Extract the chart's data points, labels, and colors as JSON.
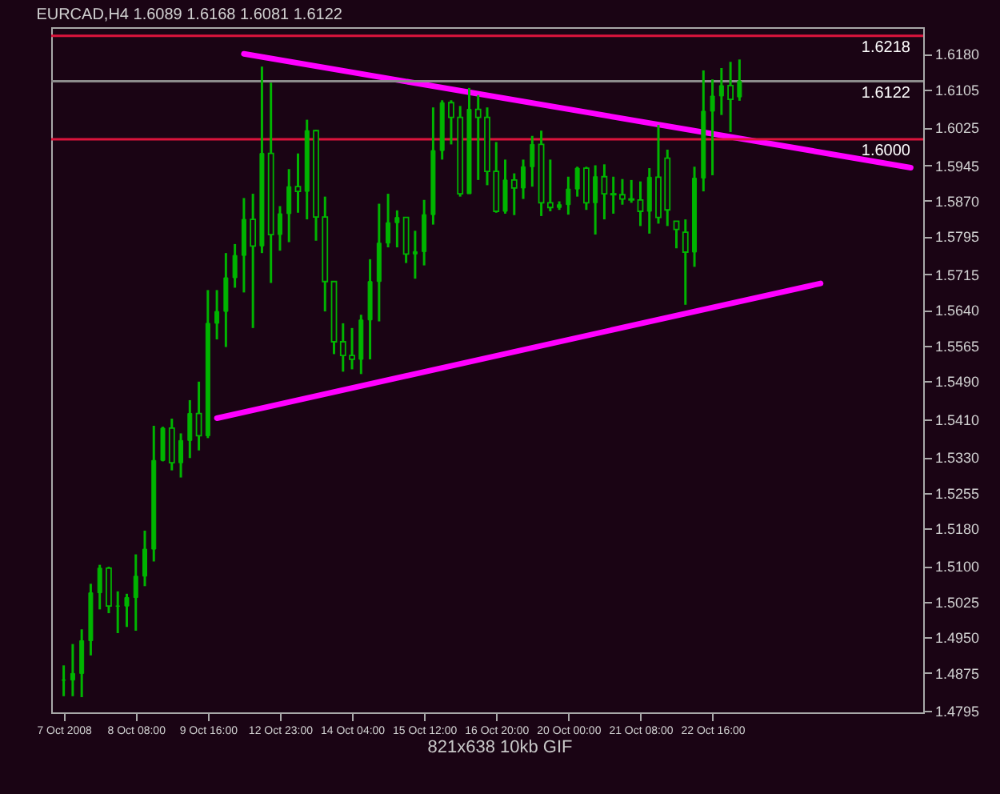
{
  "chart_data": {
    "type": "candlestick",
    "title": "EURCAD,H4  1.6089 1.6168 1.6081 1.6122",
    "color": "#00b400",
    "categories": [
      "7 Oct 2008",
      null,
      null,
      null,
      null,
      null,
      null,
      null,
      "8 Oct 08:00",
      null,
      null,
      null,
      null,
      null,
      null,
      null,
      "9 Oct 16:00",
      null,
      null,
      null,
      null,
      null,
      null,
      null,
      "12 Oct 23:00",
      null,
      null,
      null,
      null,
      null,
      null,
      null,
      "14 Oct 04:00",
      null,
      null,
      null,
      null,
      null,
      null,
      null,
      "15 Oct 12:00",
      null,
      null,
      null,
      null,
      null,
      null,
      null,
      "16 Oct 20:00",
      null,
      null,
      null,
      null,
      null,
      null,
      null,
      "20 Oct 00:00",
      null,
      null,
      null,
      null,
      null,
      null,
      null,
      "21 Oct 08:00",
      null,
      null,
      null,
      null,
      null,
      null,
      null,
      "22 Oct 16:00",
      null,
      null,
      null,
      null,
      null,
      null,
      null,
      null,
      null,
      null,
      null,
      null,
      null,
      null,
      null,
      null,
      null,
      null,
      null,
      null,
      null,
      null
    ],
    "ohlc": [
      [
        1.486,
        1.4891,
        1.4826,
        1.486
      ],
      [
        1.486,
        1.4936,
        1.4826,
        1.4874
      ],
      [
        1.4874,
        1.4967,
        1.4824,
        1.4943
      ],
      [
        1.4943,
        1.5063,
        1.4912,
        1.5044
      ],
      [
        1.5044,
        1.5103,
        1.5009,
        1.5096
      ],
      [
        1.5096,
        1.5099,
        1.5001,
        1.5016
      ],
      [
        1.5016,
        1.5047,
        1.4959,
        1.5016
      ],
      [
        1.5016,
        1.5042,
        1.4972,
        1.5034
      ],
      [
        1.5034,
        1.5125,
        1.4964,
        1.5079
      ],
      [
        1.5079,
        1.5175,
        1.5058,
        1.5136
      ],
      [
        1.5136,
        1.5396,
        1.511,
        1.5323
      ],
      [
        1.5323,
        1.5394,
        1.5321,
        1.5391
      ],
      [
        1.5391,
        1.5411,
        1.5302,
        1.5318
      ],
      [
        1.5318,
        1.538,
        1.5287,
        1.5365
      ],
      [
        1.5365,
        1.545,
        1.5328,
        1.5422
      ],
      [
        1.5422,
        1.5489,
        1.5344,
        1.5375
      ],
      [
        1.5375,
        1.5682,
        1.537,
        1.5612
      ],
      [
        1.5612,
        1.5682,
        1.5578,
        1.5637
      ],
      [
        1.5637,
        1.576,
        1.5562,
        1.5708
      ],
      [
        1.5708,
        1.5779,
        1.5687,
        1.5755
      ],
      [
        1.5755,
        1.5876,
        1.5677,
        1.5831
      ],
      [
        1.5831,
        1.5885,
        1.5602,
        1.5775
      ],
      [
        1.5775,
        1.6153,
        1.576,
        1.597
      ],
      [
        1.597,
        1.6119,
        1.5697,
        1.5799
      ],
      [
        1.5799,
        1.5859,
        1.5765,
        1.5843
      ],
      [
        1.5843,
        1.5937,
        1.5783,
        1.59
      ],
      [
        1.59,
        1.597,
        1.5845,
        1.589
      ],
      [
        1.589,
        1.6041,
        1.5831,
        1.6018
      ],
      [
        1.6018,
        1.602,
        1.5786,
        1.5836
      ],
      [
        1.5836,
        1.5879,
        1.5637,
        1.57
      ],
      [
        1.57,
        1.57,
        1.5547,
        1.5573
      ],
      [
        1.5573,
        1.5612,
        1.551,
        1.5544
      ],
      [
        1.5544,
        1.5602,
        1.5515,
        1.5536
      ],
      [
        1.5536,
        1.563,
        1.5505,
        1.5619
      ],
      [
        1.5619,
        1.5747,
        1.5536,
        1.57
      ],
      [
        1.57,
        1.5864,
        1.5616,
        1.5781
      ],
      [
        1.5781,
        1.5885,
        1.5772,
        1.5824
      ],
      [
        1.5824,
        1.585,
        1.5772,
        1.5835
      ],
      [
        1.5835,
        1.5835,
        1.5739,
        1.5758
      ],
      [
        1.5758,
        1.5807,
        1.5706,
        1.5763
      ],
      [
        1.5763,
        1.5872,
        1.5734,
        1.5841
      ],
      [
        1.5841,
        1.6067,
        1.582,
        1.5976
      ],
      [
        1.5976,
        1.6082,
        1.5957,
        1.6077
      ],
      [
        1.6077,
        1.6082,
        1.5989,
        1.6046
      ],
      [
        1.6046,
        1.607,
        1.5879,
        1.5885
      ],
      [
        1.5885,
        1.6108,
        1.5885,
        1.6063
      ],
      [
        1.6063,
        1.6093,
        1.5914,
        1.6046
      ],
      [
        1.6046,
        1.6067,
        1.5903,
        1.5932
      ],
      [
        1.5932,
        1.5994,
        1.5845,
        1.5848
      ],
      [
        1.5848,
        1.5957,
        1.5843,
        1.5914
      ],
      [
        1.5914,
        1.5928,
        1.584,
        1.5897
      ],
      [
        1.5897,
        1.5957,
        1.5874,
        1.5942
      ],
      [
        1.5942,
        1.6007,
        1.59,
        1.5989
      ],
      [
        1.5989,
        1.6018,
        1.5838,
        1.5866
      ],
      [
        1.5866,
        1.5957,
        1.5848,
        1.5856
      ],
      [
        1.5856,
        1.5869,
        1.5851,
        1.5862
      ],
      [
        1.5862,
        1.5921,
        1.5841,
        1.5895
      ],
      [
        1.5895,
        1.5942,
        1.5879,
        1.5939
      ],
      [
        1.5939,
        1.5942,
        1.5851,
        1.5866
      ],
      [
        1.5866,
        1.5945,
        1.5799,
        1.5921
      ],
      [
        1.5921,
        1.5947,
        1.5831,
        1.5885
      ],
      [
        1.5885,
        1.5921,
        1.5843,
        1.5883
      ],
      [
        1.5883,
        1.5916,
        1.5862,
        1.5874
      ],
      [
        1.5874,
        1.5914,
        1.5866,
        1.5872
      ],
      [
        1.5872,
        1.5911,
        1.5817,
        1.5848
      ],
      [
        1.5848,
        1.5939,
        1.5801,
        1.592
      ],
      [
        1.592,
        1.603,
        1.5822,
        1.5835
      ],
      [
        1.596,
        1.5978,
        1.5817,
        1.5851
      ],
      [
        1.5827,
        1.5827,
        1.577,
        1.581
      ],
      [
        1.5804,
        1.5831,
        1.5651,
        1.5762
      ],
      [
        1.5762,
        1.5942,
        1.5731,
        1.5918
      ],
      [
        1.5918,
        1.6145,
        1.589,
        1.6059
      ],
      [
        1.6059,
        1.6126,
        1.5924,
        1.6091
      ],
      [
        1.6091,
        1.615,
        1.6051,
        1.6113
      ],
      [
        1.6113,
        1.6163,
        1.6015,
        1.6084
      ],
      [
        1.6089,
        1.6168,
        1.6081,
        1.6122
      ],
      null,
      null,
      null,
      null,
      null,
      null,
      null,
      null,
      null,
      null,
      null,
      null,
      null,
      null,
      null,
      null,
      null,
      null,
      null
    ],
    "ylim": [
      1.4792,
      1.6236
    ],
    "yticks": [
      {
        "value": 1.618,
        "label": "1.6180"
      },
      1.6105,
      1.6025,
      1.5945,
      {
        "value": 1.587,
        "label": "1.5870"
      },
      1.5795,
      1.5715,
      {
        "value": 1.564,
        "label": "1.5640"
      },
      1.5565,
      {
        "value": 1.549,
        "label": "1.5490"
      },
      {
        "value": 1.541,
        "label": "1.5410"
      },
      {
        "value": 1.533,
        "label": "1.5330"
      },
      1.5255,
      {
        "value": 1.518,
        "label": "1.5180"
      },
      {
        "value": 1.51,
        "label": "1.5100"
      },
      1.5025,
      {
        "value": 1.495,
        "label": "1.4950"
      },
      1.4875,
      1.4795
    ],
    "series": [
      {
        "type": "line",
        "values": [
          null,
          null,
          null,
          null,
          null,
          null,
          null,
          null,
          null,
          null,
          null,
          null,
          null,
          null,
          null,
          null,
          null,
          null,
          null,
          null,
          1.618,
          null,
          null,
          null,
          null,
          null,
          null,
          null,
          null,
          null,
          null,
          null,
          null,
          null,
          null,
          null,
          null,
          null,
          null,
          null,
          null,
          null,
          null,
          null,
          null,
          null,
          null,
          null,
          null,
          null,
          null,
          null,
          null,
          null,
          null,
          null,
          null,
          null,
          null,
          null,
          null,
          null,
          null,
          null,
          null,
          null,
          null,
          null,
          null,
          null,
          null,
          null,
          null,
          null,
          null,
          null,
          null,
          null,
          null,
          null,
          null,
          null,
          null,
          null,
          null,
          null,
          null,
          null,
          null,
          null,
          null,
          null,
          null,
          null,
          1.594
        ],
        "color": "#ff00ff"
      },
      {
        "type": "line",
        "values": [
          null,
          null,
          null,
          null,
          null,
          null,
          null,
          null,
          null,
          null,
          null,
          null,
          null,
          null,
          null,
          null,
          null,
          1.5412,
          null,
          null,
          null,
          null,
          null,
          null,
          null,
          null,
          null,
          null,
          null,
          null,
          null,
          null,
          null,
          null,
          null,
          null,
          null,
          null,
          null,
          null,
          null,
          null,
          null,
          null,
          null,
          null,
          null,
          null,
          null,
          null,
          null,
          null,
          null,
          null,
          null,
          null,
          null,
          null,
          null,
          null,
          null,
          null,
          null,
          null,
          null,
          null,
          null,
          null,
          null,
          null,
          null,
          null,
          null,
          null,
          null,
          null,
          null,
          null,
          null,
          null,
          null,
          null,
          null,
          null,
          1.5696,
          null,
          null,
          null,
          null,
          null,
          null,
          null,
          null,
          null,
          null
        ],
        "color": "#ff00ff"
      }
    ],
    "ref_lines": [
      {
        "axis": "y",
        "value": 1.6218,
        "label": "1.6218",
        "color": "#dc143c"
      },
      {
        "axis": "y",
        "value": 1.6,
        "label": "1.6000",
        "color": "#dc143c"
      },
      {
        "axis": "y",
        "value": 1.6122,
        "label": "1.6122",
        "color": "#8c8c8c"
      }
    ],
    "annotations": [
      "821x638 10kb GIF"
    ]
  }
}
